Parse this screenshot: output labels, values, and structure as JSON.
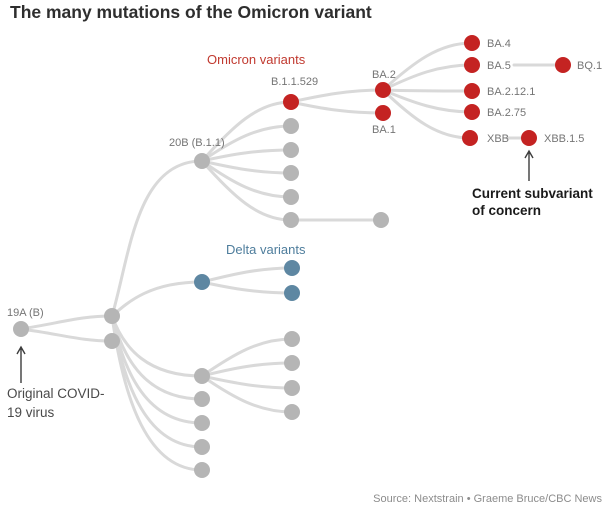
{
  "title": "The many mutations of the Omicron variant",
  "source": "Source: Nextstrain • Graeme Bruce/CBC News",
  "groups": {
    "omicron": {
      "label": "Omicron variants",
      "color": "#c13a30"
    },
    "delta": {
      "label": "Delta variants",
      "color": "#4e7d9c"
    }
  },
  "labels": {
    "n19a": "19A (B)",
    "n20b": "20B (B.1.1)",
    "b529": "B.1.1.529",
    "ba2": "BA.2",
    "ba1": "BA.1",
    "ba4": "BA.4",
    "ba5": "BA.5",
    "bq1": "BQ.1",
    "ba2121": "BA.2.12.1",
    "ba275": "BA.2.75",
    "xbb": "XBB",
    "xbb15": "XBB.1.5"
  },
  "annotations": {
    "origin": {
      "line1": "Original COVID-",
      "line2": "19 virus"
    },
    "concern": {
      "line1": "Current subvariant",
      "line2": "of concern"
    }
  },
  "colors": {
    "omicron_node": "#c42322",
    "delta_node": "#5e87a2",
    "default_node": "#b5b5b5",
    "edge": "#d9d9d9",
    "title_text": "#2e2e2e",
    "node_label_text": "#757575",
    "annotation_text": "#4a4a4a",
    "concern_text": "#1a1a1a",
    "source_text": "#8c8c8c"
  },
  "lineage": {
    "root": "19A (B)",
    "named_descent": [
      [
        "19A (B)",
        "20B (B.1.1)"
      ],
      [
        "20B (B.1.1)",
        "B.1.1.529"
      ],
      [
        "B.1.1.529",
        "BA.2"
      ],
      [
        "B.1.1.529",
        "BA.1"
      ],
      [
        "BA.2",
        "BA.4"
      ],
      [
        "BA.2",
        "BA.5"
      ],
      [
        "BA.2",
        "BA.2.12.1"
      ],
      [
        "BA.2",
        "BA.2.75"
      ],
      [
        "BA.2",
        "XBB"
      ],
      [
        "BA.5",
        "BQ.1"
      ],
      [
        "XBB",
        "XBB.1.5"
      ]
    ],
    "current_subvariant_of_concern": "XBB.1.5"
  }
}
